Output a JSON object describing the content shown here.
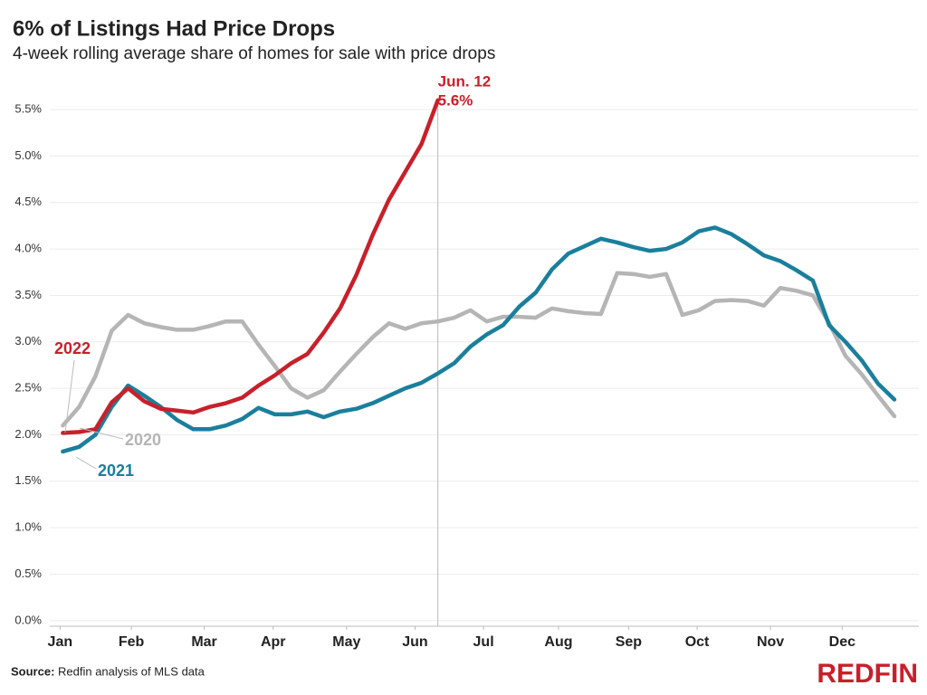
{
  "chart_data": {
    "type": "line",
    "title": "6% of Listings Had Price Drops",
    "subtitle": "4-week rolling average share of homes for sale with price drops",
    "x": [
      1,
      2,
      3,
      4,
      5,
      6,
      7,
      8,
      9,
      10,
      11,
      12,
      13,
      14,
      15,
      16,
      17,
      18,
      19,
      20,
      21,
      22,
      23,
      24,
      25,
      26,
      27,
      28,
      29,
      30,
      31,
      32,
      33,
      34,
      35,
      36,
      37,
      38,
      39,
      40,
      41,
      42,
      43,
      44,
      45,
      46,
      47,
      48,
      49,
      50,
      51,
      52
    ],
    "series": [
      {
        "name": "2020",
        "color": "#b5b5b5",
        "values": [
          2.1,
          2.3,
          2.63,
          3.12,
          3.29,
          3.2,
          3.16,
          3.13,
          3.13,
          3.17,
          3.22,
          3.22,
          2.97,
          2.74,
          2.5,
          2.4,
          2.48,
          2.68,
          2.87,
          3.05,
          3.2,
          3.14,
          3.2,
          3.22,
          3.26,
          3.34,
          3.22,
          3.27,
          3.27,
          3.26,
          3.36,
          3.33,
          3.31,
          3.3,
          3.74,
          3.73,
          3.7,
          3.73,
          3.29,
          3.34,
          3.44,
          3.45,
          3.44,
          3.39,
          3.58,
          3.55,
          3.5,
          3.2,
          2.85,
          2.65,
          2.42,
          2.2
        ]
      },
      {
        "name": "2021",
        "color": "#1a7f9c",
        "values": [
          1.82,
          1.87,
          2.0,
          2.3,
          2.53,
          2.42,
          2.3,
          2.16,
          2.06,
          2.06,
          2.1,
          2.17,
          2.29,
          2.22,
          2.22,
          2.25,
          2.19,
          2.25,
          2.28,
          2.34,
          2.42,
          2.5,
          2.56,
          2.66,
          2.77,
          2.95,
          3.08,
          3.18,
          3.38,
          3.53,
          3.78,
          3.95,
          4.03,
          4.11,
          4.07,
          4.02,
          3.98,
          4.0,
          4.07,
          4.19,
          4.23,
          4.16,
          4.05,
          3.93,
          3.87,
          3.77,
          3.66,
          3.18,
          3.0,
          2.8,
          2.55,
          2.38
        ]
      },
      {
        "name": "2022",
        "color": "#c8202a",
        "values": [
          2.02,
          2.03,
          2.06,
          2.35,
          2.5,
          2.36,
          2.28,
          2.26,
          2.24,
          2.3,
          2.34,
          2.4,
          2.53,
          2.64,
          2.77,
          2.87,
          3.1,
          3.36,
          3.72,
          4.15,
          4.53,
          4.83,
          5.13,
          5.6,
          null,
          null,
          null,
          null,
          null,
          null,
          null,
          null,
          null,
          null,
          null,
          null,
          null,
          null,
          null,
          null,
          null,
          null,
          null,
          null,
          null,
          null,
          null,
          null,
          null,
          null,
          null,
          null
        ]
      }
    ],
    "xlim": [
      0.2,
      53.5
    ],
    "xticks": [
      {
        "value": 0.83,
        "label": "Jan"
      },
      {
        "value": 5.2,
        "label": "Feb"
      },
      {
        "value": 9.67,
        "label": "Mar"
      },
      {
        "value": 13.9,
        "label": "Apr"
      },
      {
        "value": 18.4,
        "label": "May"
      },
      {
        "value": 22.6,
        "label": "Jun"
      },
      {
        "value": 26.8,
        "label": "Jul"
      },
      {
        "value": 31.4,
        "label": "Aug"
      },
      {
        "value": 35.7,
        "label": "Sep"
      },
      {
        "value": 39.9,
        "label": "Oct"
      },
      {
        "value": 44.4,
        "label": "Nov"
      },
      {
        "value": 48.8,
        "label": "Dec"
      }
    ],
    "ylim": [
      -0.06,
      5.9
    ],
    "yticks": [
      {
        "value": 0,
        "label": "0.0%"
      },
      {
        "value": 0.5,
        "label": "0.5%"
      },
      {
        "value": 1,
        "label": "1.0%"
      },
      {
        "value": 1.5,
        "label": "1.5%"
      },
      {
        "value": 2,
        "label": "2.0%"
      },
      {
        "value": 2.5,
        "label": "2.5%"
      },
      {
        "value": 3,
        "label": "3.0%"
      },
      {
        "value": 3.5,
        "label": "3.5%"
      },
      {
        "value": 4,
        "label": "4.0%"
      },
      {
        "value": 4.5,
        "label": "4.5%"
      },
      {
        "value": 5,
        "label": "5.0%"
      },
      {
        "value": 5.5,
        "label": "5.5%"
      }
    ],
    "grid": true,
    "highlight": {
      "x": 24,
      "date_label": "Jun. 12",
      "value": 5.6,
      "value_label": "5.6%"
    },
    "source_label": "Source:",
    "source": "Redfin analysis of MLS data",
    "logo": "REDFIN"
  }
}
